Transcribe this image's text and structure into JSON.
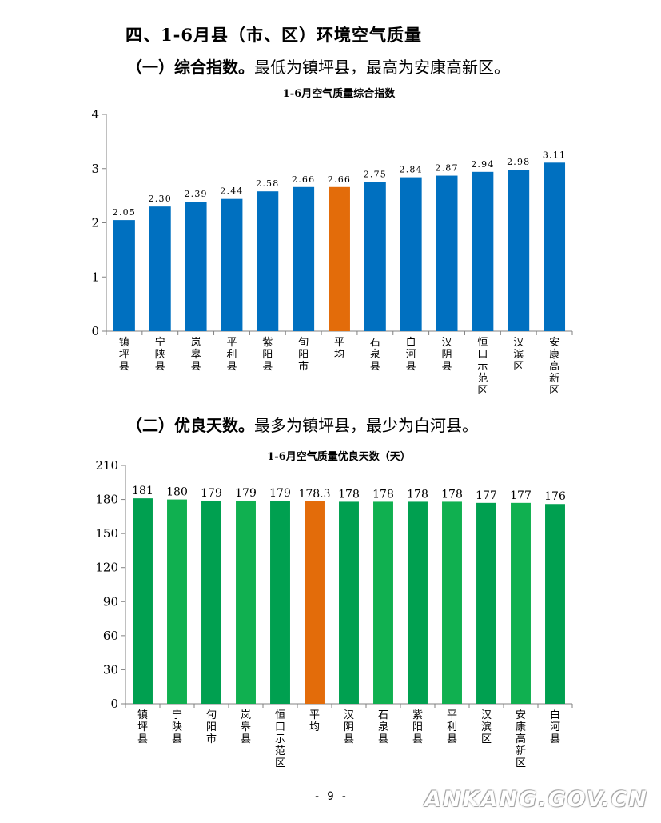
{
  "heading": "四、1-6月县（市、区）环境空气质量",
  "para1": {
    "lead": "（一）综合指数。",
    "text": "最低为镇坪县，最高为安康高新区。"
  },
  "para2": {
    "lead": "（二）优良天数。",
    "text": "最多为镇坪县，最少为白河县。"
  },
  "page_number": "- 9 -",
  "watermark": "ANKANG.GOV.CN",
  "colors": {
    "blue": "#0070C0",
    "orange": "#E36C0A",
    "green_dark": "#00A050",
    "green_light": "#10B050"
  },
  "chart_data": [
    {
      "type": "bar",
      "title": "1-6月空气质量综合指数",
      "categories": [
        "镇坪县",
        "宁陕县",
        "岚皋县",
        "平利县",
        "紫阳县",
        "旬阳市",
        "平均",
        "石泉县",
        "白河县",
        "汉阴县",
        "恒口示范区",
        "汉滨区",
        "安康高新区"
      ],
      "values": [
        2.05,
        2.3,
        2.39,
        2.44,
        2.58,
        2.66,
        2.66,
        2.75,
        2.84,
        2.87,
        2.94,
        2.98,
        3.11
      ],
      "labels": [
        "2.05",
        "2.30",
        "2.39",
        "2.44",
        "2.58",
        "2.66",
        "2.66",
        "2.75",
        "2.84",
        "2.87",
        "2.94",
        "2.98",
        "3.11"
      ],
      "highlight_index": 6,
      "ylim": [
        0,
        4
      ],
      "yticks": [
        0,
        1,
        2,
        3,
        4
      ],
      "xlabel": "",
      "ylabel": "",
      "grid": false,
      "legend": "none"
    },
    {
      "type": "bar",
      "title": "1-6月空气质量优良天数（天）",
      "categories": [
        "镇坪县",
        "宁陕县",
        "旬阳市",
        "岚皋县",
        "恒口示范区",
        "平均",
        "汉阴县",
        "石泉县",
        "紫阳县",
        "平利县",
        "汉滨区",
        "安康高新区",
        "白河县"
      ],
      "values": [
        181,
        180,
        179,
        179,
        179,
        178.3,
        178,
        178,
        178,
        178,
        177,
        177,
        176
      ],
      "labels": [
        "181",
        "180",
        "179",
        "179",
        "179",
        "178.3",
        "178",
        "178",
        "178",
        "178",
        "177",
        "177",
        "176"
      ],
      "highlight_index": 5,
      "ylim": [
        0,
        210
      ],
      "yticks": [
        0,
        30,
        60,
        90,
        120,
        150,
        180,
        210
      ],
      "xlabel": "",
      "ylabel": "",
      "grid": false,
      "legend": "none"
    }
  ]
}
